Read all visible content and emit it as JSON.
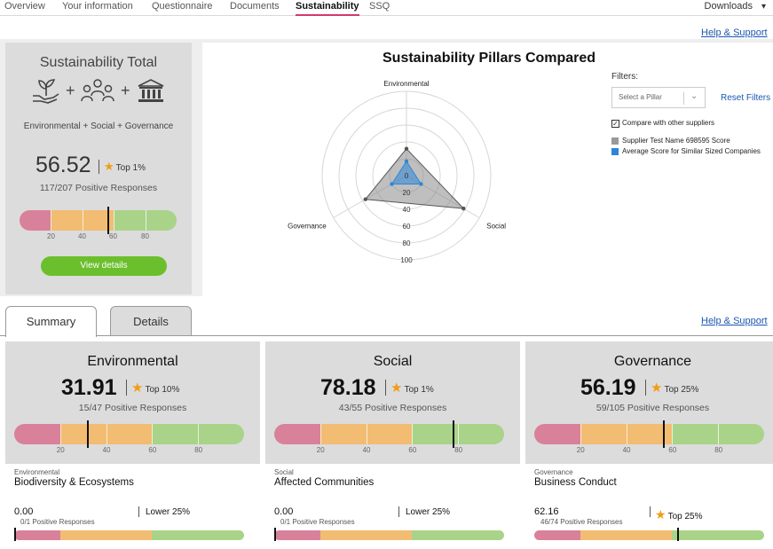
{
  "nav": {
    "tabs": [
      "Overview",
      "Your information",
      "Questionnaire",
      "Documents",
      "Sustainability",
      "SSQ"
    ],
    "active": "Sustainability",
    "downloads": "Downloads"
  },
  "help_link": "Help & Support",
  "total": {
    "title": "Sustainability Total",
    "description": "Environmental + Social + Governance",
    "score": "56.52",
    "rank": "Top 1%",
    "responses": "117/207 Positive Responses",
    "bar_value": 56.52,
    "tick_labels": [
      "20",
      "40",
      "60",
      "80"
    ],
    "view_button": "View details"
  },
  "radar": {
    "title": "Sustainability Pillars Compared",
    "axes": [
      "Environmental",
      "Social",
      "Governance"
    ],
    "ring_labels": [
      "0",
      "20",
      "40",
      "60",
      "80",
      "100"
    ],
    "filters_label": "Filters:",
    "select_placeholder": "Select a Pillar",
    "reset": "Reset Filters",
    "compare_label": "Compare with other suppliers",
    "compare_checked": true,
    "legend": [
      {
        "label": "Supplier Test Name 698595 Score",
        "color": "#999999"
      },
      {
        "label": "Average Score for Similar Sized Companies",
        "color": "#2e86d6"
      }
    ]
  },
  "chart_data": {
    "type": "radar",
    "axes": [
      "Environmental",
      "Social",
      "Governance"
    ],
    "rlim": [
      0,
      100
    ],
    "series": [
      {
        "name": "Supplier Test Name 698595 Score",
        "values": [
          31.91,
          78.18,
          56.19
        ]
      },
      {
        "name": "Average Score for Similar Sized Companies",
        "values": [
          17,
          20,
          20
        ]
      }
    ]
  },
  "lower_tabs": [
    "Summary",
    "Details"
  ],
  "pillars": [
    {
      "name": "Environmental",
      "score": "31.91",
      "rank": "Top 10%",
      "responses": "15/47 Positive Responses",
      "bar_value": 31.91,
      "sub_category": "Environmental",
      "sub_name": "Biodiversity & Ecosystems",
      "sub_score": "0.00",
      "sub_responses": "0/1 Positive Responses",
      "sub_rank": "Lower 25%",
      "sub_bar_value": 0
    },
    {
      "name": "Social",
      "score": "78.18",
      "rank": "Top 1%",
      "responses": "43/55 Positive Responses",
      "bar_value": 78.18,
      "sub_category": "Social",
      "sub_name": "Affected Communities",
      "sub_score": "0.00",
      "sub_responses": "0/1 Positive Responses",
      "sub_rank": "Lower 25%",
      "sub_bar_value": 0
    },
    {
      "name": "Governance",
      "score": "56.19",
      "rank": "Top 25%",
      "responses": "59/105 Positive Responses",
      "bar_value": 56.19,
      "sub_category": "Governance",
      "sub_name": "Business Conduct",
      "sub_score": "62.16",
      "sub_responses": "46/74 Positive Responses",
      "sub_rank": "Top 25%",
      "sub_bar_value": 62.16
    }
  ],
  "colors": {
    "bar_low": "#d9809a",
    "bar_mid": "#f2bc73",
    "bar_high": "#a8d389",
    "button": "#6cbf2c",
    "star": "#f39c12",
    "link": "#1b57b1"
  }
}
